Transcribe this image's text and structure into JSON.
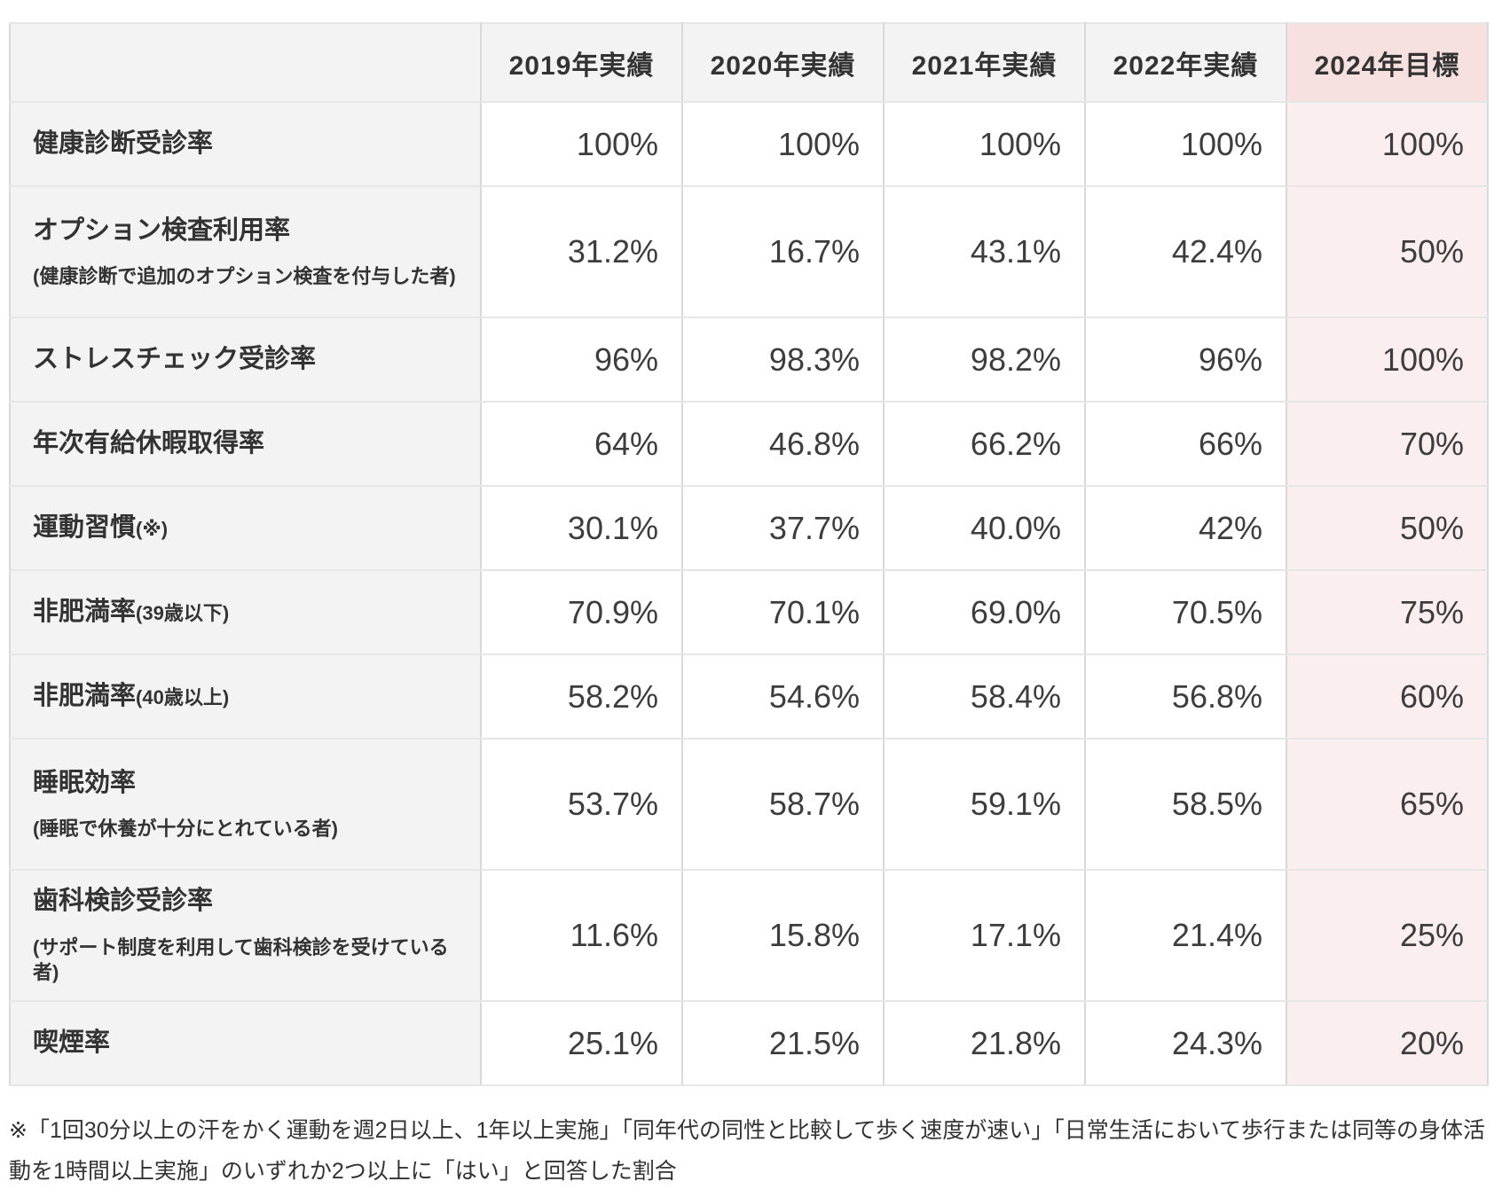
{
  "chart_data": {
    "type": "table",
    "columns": [
      "2019年実績",
      "2020年実績",
      "2021年実績",
      "2022年実績",
      "2024年目標"
    ],
    "target_column_accent": "#f6e0e0",
    "rows": [
      {
        "label": "健康診断受診率",
        "values": [
          "100%",
          "100%",
          "100%",
          "100%",
          "100%"
        ]
      },
      {
        "label": "オプション検査利用率",
        "sublabel": "(健康診断で追加のオプション検査を付与した者)",
        "values": [
          "31.2%",
          "16.7%",
          "43.1%",
          "42.4%",
          "50%"
        ]
      },
      {
        "label": "ストレスチェック受診率",
        "values": [
          "96%",
          "98.3%",
          "98.2%",
          "96%",
          "100%"
        ]
      },
      {
        "label": "年次有給休暇取得率",
        "values": [
          "64%",
          "46.8%",
          "66.2%",
          "66%",
          "70%"
        ]
      },
      {
        "label": "運動習慣",
        "suffix": "(※)",
        "values": [
          "30.1%",
          "37.7%",
          "40.0%",
          "42%",
          "50%"
        ]
      },
      {
        "label": "非肥満率",
        "suffix": "(39歳以下)",
        "values": [
          "70.9%",
          "70.1%",
          "69.0%",
          "70.5%",
          "75%"
        ]
      },
      {
        "label": "非肥満率",
        "suffix": "(40歳以上)",
        "values": [
          "58.2%",
          "54.6%",
          "58.4%",
          "56.8%",
          "60%"
        ]
      },
      {
        "label": "睡眠効率",
        "sublabel": "(睡眠で休養が十分にとれている者)",
        "values": [
          "53.7%",
          "58.7%",
          "59.1%",
          "58.5%",
          "65%"
        ]
      },
      {
        "label": "歯科検診受診率",
        "sublabel": "(サポート制度を利用して歯科検診を受けている者)",
        "values": [
          "11.6%",
          "15.8%",
          "17.1%",
          "21.4%",
          "25%"
        ]
      },
      {
        "label": "喫煙率",
        "values": [
          "25.1%",
          "21.5%",
          "21.8%",
          "24.3%",
          "20%"
        ]
      }
    ],
    "footnote": "※「1回30分以上の汗をかく運動を週2日以上、1年以上実施」「同年代の同性と比較して歩く速度が速い」「日常生活において歩行または同等の身体活動を1時間以上実施」のいずれか2つ以上に「はい」と回答した割合",
    "colors": {
      "header_bg": "#f3f3f3",
      "label_bg": "#f3f3f3",
      "target_header_bg": "#f6e0e0",
      "target_cell_bg": "#faeeee",
      "border_vertical": "#d9d9d9",
      "border_horizontal": "#e6e6e6",
      "text": "#333333",
      "value_text": "#3d3d3d"
    }
  }
}
